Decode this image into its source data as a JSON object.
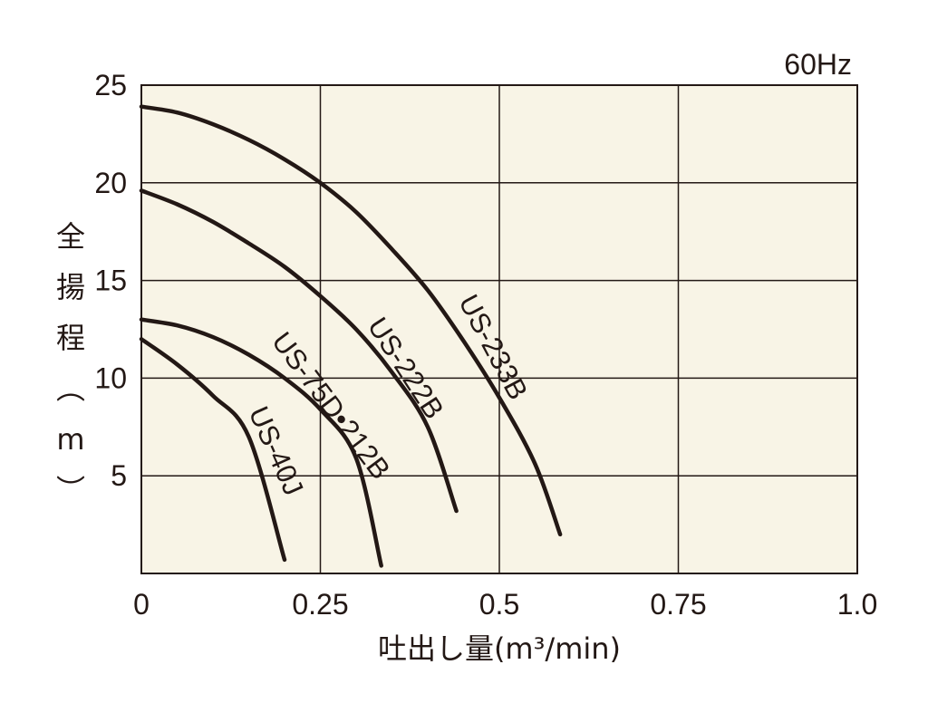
{
  "chart_data": {
    "type": "line",
    "annotation": "60Hz",
    "xlabel": "吐出し量(m³/min)",
    "ylabel": "全揚程(m)",
    "xlim": [
      0,
      1.0
    ],
    "ylim": [
      0,
      25
    ],
    "x_ticks": [
      "0",
      "0.25",
      "0.5",
      "0.75",
      "1.0"
    ],
    "x_tick_values": [
      0,
      0.25,
      0.5,
      0.75,
      1.0
    ],
    "y_ticks": [
      "5",
      "10",
      "15",
      "20",
      "25"
    ],
    "y_tick_values": [
      5,
      10,
      15,
      20,
      25
    ],
    "grid": true,
    "colors": {
      "background": "#f8f4e6",
      "line": "#231815"
    },
    "series": [
      {
        "name": "US-233B",
        "points": [
          [
            0,
            23.9
          ],
          [
            0.05,
            23.6
          ],
          [
            0.1,
            23.0
          ],
          [
            0.15,
            22.2
          ],
          [
            0.2,
            21.2
          ],
          [
            0.25,
            20.0
          ],
          [
            0.3,
            18.5
          ],
          [
            0.35,
            16.6
          ],
          [
            0.4,
            14.5
          ],
          [
            0.45,
            11.9
          ],
          [
            0.5,
            9.0
          ],
          [
            0.55,
            5.6
          ],
          [
            0.585,
            2.0
          ]
        ]
      },
      {
        "name": "US-222B",
        "points": [
          [
            0,
            19.6
          ],
          [
            0.05,
            18.9
          ],
          [
            0.1,
            18.0
          ],
          [
            0.15,
            16.9
          ],
          [
            0.2,
            15.7
          ],
          [
            0.25,
            14.2
          ],
          [
            0.3,
            12.5
          ],
          [
            0.35,
            10.3
          ],
          [
            0.4,
            7.5
          ],
          [
            0.44,
            3.2
          ]
        ]
      },
      {
        "name": "US-75D•212B",
        "points": [
          [
            0,
            13.0
          ],
          [
            0.05,
            12.7
          ],
          [
            0.1,
            12.1
          ],
          [
            0.15,
            11.2
          ],
          [
            0.2,
            10.0
          ],
          [
            0.25,
            8.4
          ],
          [
            0.3,
            5.9
          ],
          [
            0.335,
            0.4
          ]
        ]
      },
      {
        "name": "US-40J",
        "points": [
          [
            0,
            12.0
          ],
          [
            0.05,
            10.7
          ],
          [
            0.1,
            9.1
          ],
          [
            0.15,
            7.0
          ],
          [
            0.2,
            0.7
          ]
        ]
      }
    ]
  }
}
